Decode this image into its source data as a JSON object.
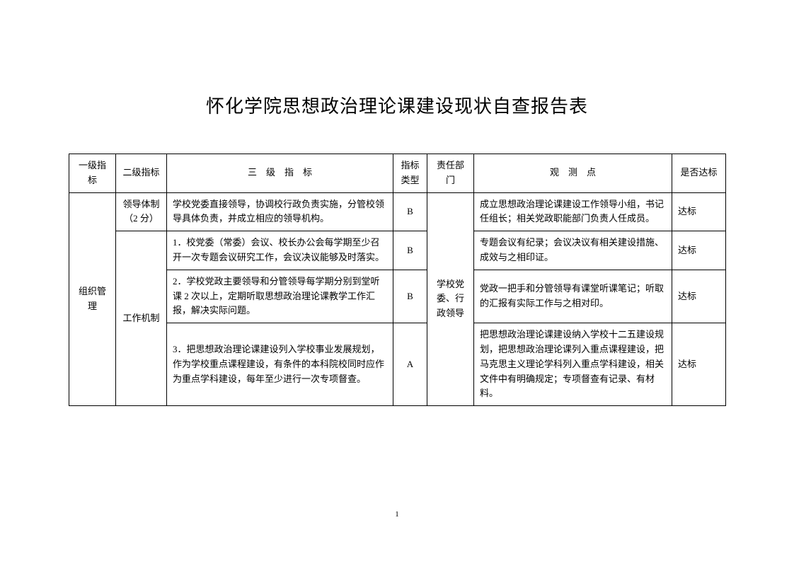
{
  "title": "怀化学院思想政治理论课建设现状自查报告表",
  "columns": {
    "c1": "一级指标",
    "c2": "二级指标",
    "c3": "三　级　指　标",
    "c4": "指标类型",
    "c5": "责任部门",
    "c6": "观　测　点",
    "c7": "是否达标"
  },
  "level1": "组织管理",
  "level2_a": "领导体制（2 分）",
  "level2_b": "工作机制",
  "dept": "学校党委、行政领导",
  "rows": [
    {
      "c3": "学校党委直接领导，协调校行政负责实施，分管校领导具体负责，并成立相应的领导机构。",
      "c4": "B",
      "c6": "成立思想政治理论课建设工作领导小组，书记任组长；相关党政职能部门负责人任成员。",
      "c7": "达标"
    },
    {
      "c3": "1．校党委（常委）会议、校长办公会每学期至少召开一次专题会议研究工作，会议决议能够及时落实。",
      "c4": "B",
      "c6": "专题会议有纪录；会议决议有相关建设措施、成效与之相印证。",
      "c7": "达标"
    },
    {
      "c3": "2．学校党政主要领导和分管领导每学期分别到堂听课 2 次以上，定期听取思想政治理论课教学工作汇报，解决实际问题。",
      "c4": "B",
      "c6": "党政一把手和分管领导有课堂听课笔记；听取的汇报有实际工作与之相对印。",
      "c7": "达标"
    },
    {
      "c3": "3．把思想政治理论课建设列入学校事业发展规划，作为学校重点课程建设，有条件的本科院校同时应作为重点学科建设，每年至少进行一次专项督查。",
      "c4": "A",
      "c6": "把思想政治理论课建设纳入学校十二五建设规划，把思想政治理论课列入重点课程建设，把马克思主义理论学科列入重点学科建设，相关文件中有明确规定；专项督查有记录、有材料。",
      "c7": "达标"
    }
  ],
  "page_number": "1"
}
